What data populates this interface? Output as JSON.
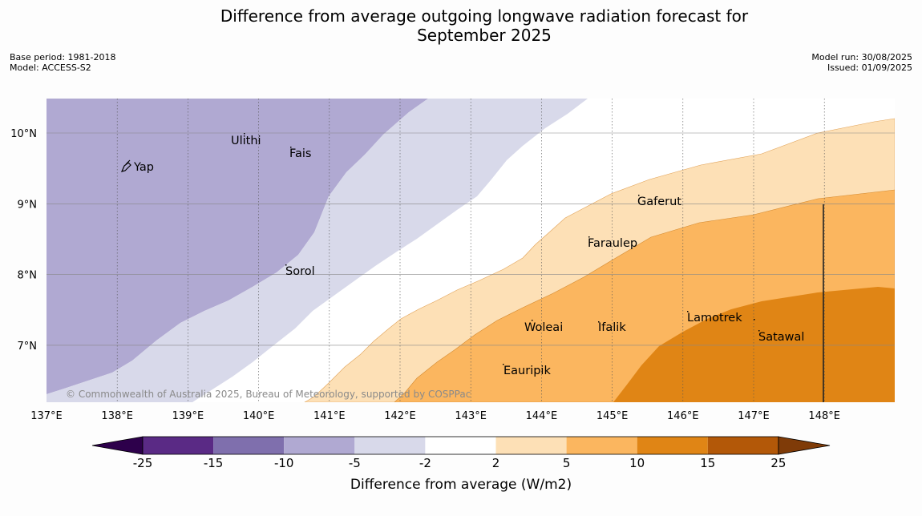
{
  "title_line1": "Difference from average outgoing longwave radiation forecast for",
  "title_line2": "September 2025",
  "meta": {
    "base_period": "Base period: 1981-2018",
    "model": "Model: ACCESS-S2",
    "model_run": "Model run: 30/08/2025",
    "issued": "Issued: 01/09/2025"
  },
  "map": {
    "lon_ticks": [
      "137°E",
      "138°E",
      "139°E",
      "140°E",
      "141°E",
      "142°E",
      "143°E",
      "144°E",
      "145°E",
      "146°E",
      "147°E",
      "148°E"
    ],
    "lat_ticks": [
      "10°N",
      "9°N",
      "8°N",
      "7°N"
    ],
    "places": [
      {
        "name": "Yap"
      },
      {
        "name": "Ulithi"
      },
      {
        "name": "Fais"
      },
      {
        "name": "Sorol"
      },
      {
        "name": "Gaferut"
      },
      {
        "name": "Faraulep"
      },
      {
        "name": "Woleai"
      },
      {
        "name": "Ifalik"
      },
      {
        "name": "Lamotrek"
      },
      {
        "name": "Satawal"
      },
      {
        "name": "Eauripik"
      }
    ],
    "copyright": "© Commonwealth of Australia 2025, Bureau of Meteorology, supported by COSPPac"
  },
  "colorbar": {
    "colors": [
      "#5a2a85",
      "#7f6fad",
      "#b0a9d2",
      "#d8d9ea",
      "#ffffff",
      "#fde0b6",
      "#fbb65f",
      "#e08515",
      "#b35808"
    ],
    "under_color": "#2d004b",
    "over_color": "#7f3b08",
    "tick_labels": [
      "-25",
      "-15",
      "-10",
      "-5",
      "-2",
      "2",
      "5",
      "10",
      "15",
      "25"
    ],
    "label": "Difference from average (W/m2)"
  }
}
